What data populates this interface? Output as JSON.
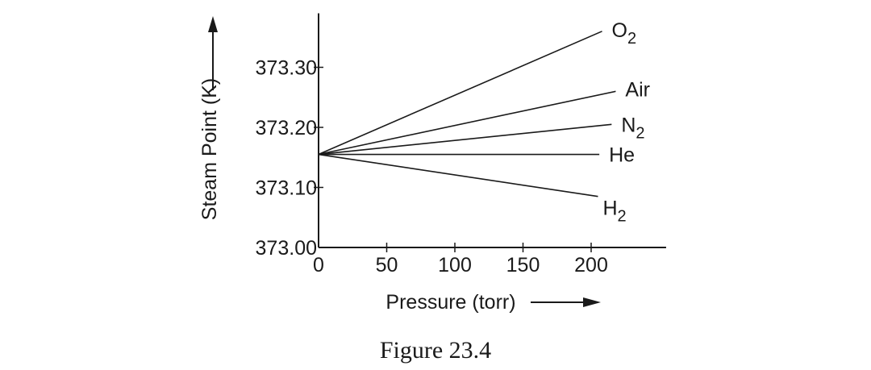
{
  "chart_data": {
    "type": "line",
    "xlabel": "Pressure (torr)",
    "ylabel": "Steam Point (K)",
    "x_ticks": [
      0,
      50,
      100,
      150,
      200
    ],
    "y_ticks": [
      "373.00",
      "373.10",
      "373.20",
      "373.30"
    ],
    "xlim": [
      0,
      255
    ],
    "ylim": [
      373.0,
      373.39
    ],
    "grid": false,
    "series": [
      {
        "name": "O",
        "sub": "2",
        "x": [
          0,
          208
        ],
        "y": [
          373.155,
          373.36
        ]
      },
      {
        "name": "Air",
        "sub": "",
        "x": [
          0,
          218
        ],
        "y": [
          373.155,
          373.26
        ]
      },
      {
        "name": "N",
        "sub": "2",
        "x": [
          0,
          215
        ],
        "y": [
          373.155,
          373.205
        ]
      },
      {
        "name": "He",
        "sub": "",
        "x": [
          0,
          206
        ],
        "y": [
          373.155,
          373.155
        ]
      },
      {
        "name": "H",
        "sub": "2",
        "x": [
          0,
          205
        ],
        "y": [
          373.155,
          373.085
        ]
      }
    ]
  },
  "caption": "Figure 23.4",
  "colors": {
    "ink": "#1a1a1a",
    "background": "#ffffff"
  }
}
